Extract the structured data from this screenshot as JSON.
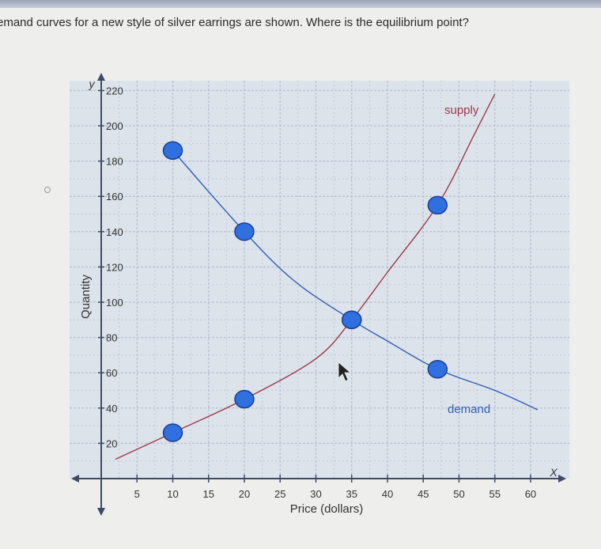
{
  "question": {
    "text": "emand curves for a new style of silver earrings are shown. Where is the equilibrium point?"
  },
  "colors": {
    "supply": "#9b3a4a",
    "demand": "#2e5fb8",
    "point_fill": "#2f6fe0",
    "point_stroke": "#1c3f8f",
    "grid": "#b9c4d4",
    "plot_bg": "#dde3ea",
    "axis": "#3d4b66"
  },
  "chart_data": {
    "type": "line",
    "title": "",
    "xlabel": "Price (dollars)",
    "ylabel": "Quantity",
    "x_axis_letter": "X",
    "y_axis_letter": "y",
    "xlim": [
      0,
      61
    ],
    "ylim": [
      0,
      222
    ],
    "x_ticks": [
      5,
      10,
      15,
      20,
      25,
      30,
      35,
      40,
      45,
      50,
      55,
      60
    ],
    "y_ticks": [
      20,
      40,
      60,
      80,
      100,
      120,
      140,
      160,
      180,
      200,
      220
    ],
    "grid": true,
    "series": [
      {
        "name": "supply",
        "label": "supply",
        "points": [
          [
            2,
            11
          ],
          [
            10,
            26
          ],
          [
            20,
            45
          ],
          [
            30,
            68
          ],
          [
            35,
            90
          ],
          [
            40,
            117
          ],
          [
            47,
            155
          ],
          [
            52,
            194
          ],
          [
            55,
            218
          ]
        ],
        "markers": [
          [
            10,
            26
          ],
          [
            20,
            45
          ],
          [
            35,
            90
          ],
          [
            47,
            155
          ]
        ]
      },
      {
        "name": "demand",
        "label": "demand",
        "points": [
          [
            10,
            186
          ],
          [
            20,
            140
          ],
          [
            27,
            112
          ],
          [
            35,
            90
          ],
          [
            40,
            78
          ],
          [
            47,
            62
          ],
          [
            55,
            50
          ],
          [
            61,
            39
          ]
        ],
        "markers": [
          [
            10,
            186
          ],
          [
            20,
            140
          ],
          [
            35,
            90
          ],
          [
            47,
            62
          ]
        ]
      }
    ]
  }
}
